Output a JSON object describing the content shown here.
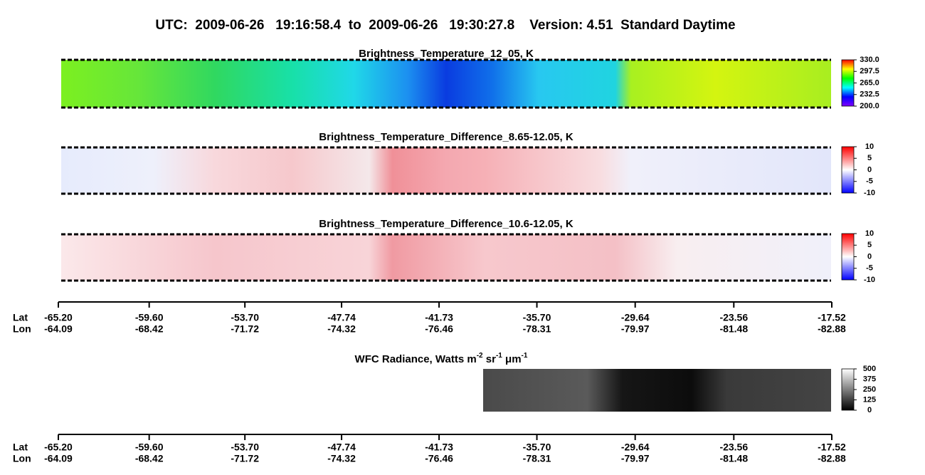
{
  "title": "UTC:  2009-06-26   19:16:58.4  to  2009-06-26   19:30:27.8    Version: 4.51  Standard Daytime",
  "chart_data": [
    {
      "type": "heatmap",
      "title": "Brightness_Temperature_12_05, K",
      "colorbar": {
        "lim": [
          200,
          330
        ],
        "ticks": [
          {
            "value": 330,
            "label": "330.0"
          },
          297.5,
          {
            "value": 265,
            "label": "265.0"
          },
          232.5,
          {
            "value": 200,
            "label": "200.0"
          }
        ],
        "colors": [
          "#8000ff",
          "#0000ff",
          "#00ffff",
          "#00ff00",
          "#ffff00",
          "#ff0000"
        ]
      }
    },
    {
      "type": "heatmap",
      "title": "Brightness_Temperature_Difference_8.65-12.05, K",
      "colorbar": {
        "lim": [
          -10,
          10
        ],
        "ticks": [
          10,
          5,
          0,
          -5,
          -10
        ],
        "colors": [
          "#0000ff",
          "#ffffff",
          "#ff0000"
        ]
      }
    },
    {
      "type": "heatmap",
      "title": "Brightness_Temperature_Difference_10.6-12.05, K",
      "colorbar": {
        "lim": [
          -10,
          10
        ],
        "ticks": [
          10,
          5,
          0,
          -5,
          -10
        ],
        "colors": [
          "#0000ff",
          "#ffffff",
          "#ff0000"
        ]
      }
    },
    {
      "type": "heatmap",
      "title_parts": [
        "WFC Radiance, Watts m",
        "-2",
        " sr",
        "-1",
        " μm",
        "-1"
      ],
      "colorbar": {
        "lim": [
          0,
          500
        ],
        "ticks": [
          500,
          375,
          250,
          125,
          0
        ],
        "colors": [
          "#000000",
          "#ffffff"
        ]
      }
    }
  ],
  "axis": {
    "lat_label": "Lat",
    "lon_label": "Lon",
    "xlim": [
      -65.2,
      -17.52
    ],
    "xticks": [
      {
        "value": -65.2,
        "label": "-65.20"
      },
      {
        "value": -59.6,
        "label": "-59.60"
      },
      {
        "value": -53.7,
        "label": "-53.70"
      },
      -47.74,
      -41.73,
      {
        "value": -35.7,
        "label": "-35.70"
      },
      -29.64,
      -23.56,
      -17.52
    ],
    "lon_ticks": [
      -64.09,
      -68.42,
      -71.72,
      -74.32,
      -76.46,
      -78.31,
      -79.97,
      -81.48,
      -82.88
    ]
  }
}
